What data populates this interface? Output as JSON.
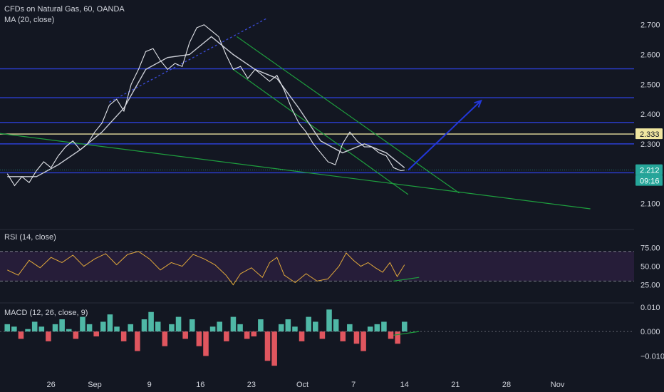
{
  "chart_data": {
    "type": "line",
    "title": "CFDs on Natural Gas, 60, OANDA",
    "indicator_ma": "MA (20, close)",
    "indicator_rsi": "RSI (14, close)",
    "indicator_macd": "MACD (12, 26, close, 9)",
    "x_ticks": [
      "26",
      "Sep",
      "9",
      "16",
      "23",
      "Oct",
      "7",
      "14",
      "21",
      "28",
      "Nov"
    ],
    "price_axis": {
      "ticks": [
        "2.700",
        "2.600",
        "2.500",
        "2.400",
        "2.300",
        "2.200",
        "2.100"
      ],
      "ylim": [
        2.07,
        2.74
      ]
    },
    "rsi_axis": {
      "ticks": [
        "75.00",
        "50.00",
        "25.00"
      ],
      "ylim": [
        15,
        90
      ],
      "band": [
        30,
        70
      ]
    },
    "macd_axis": {
      "ticks": [
        "0.010",
        "0.000",
        "−0.010"
      ],
      "ylim": [
        -0.016,
        0.012
      ]
    },
    "price_tags": [
      {
        "value": "2.333",
        "color": "#f0e6a0",
        "text_color": "#131722"
      },
      {
        "value": "2.212",
        "color": "#26a69a",
        "text_color": "#ffffff"
      },
      {
        "value": "09:16",
        "color": "#26a69a",
        "text_color": "#ffffff"
      }
    ],
    "horizontal_levels": [
      2.552,
      2.455,
      2.372,
      2.3,
      2.203
    ],
    "highlight_level": 2.333,
    "close_price": 2.212,
    "price_series": [
      {
        "t": -12,
        "v": 2.2
      },
      {
        "t": -10,
        "v": 2.16
      },
      {
        "t": -8,
        "v": 2.19
      },
      {
        "t": -6,
        "v": 2.17
      },
      {
        "t": -4,
        "v": 2.21
      },
      {
        "t": -2,
        "v": 2.24
      },
      {
        "t": 0,
        "v": 2.22
      },
      {
        "t": 2,
        "v": 2.26
      },
      {
        "t": 4,
        "v": 2.29
      },
      {
        "t": 6,
        "v": 2.31
      },
      {
        "t": 8,
        "v": 2.28
      },
      {
        "t": 10,
        "v": 2.3
      },
      {
        "t": 12,
        "v": 2.34
      },
      {
        "t": 14,
        "v": 2.37
      },
      {
        "t": 16,
        "v": 2.43
      },
      {
        "t": 18,
        "v": 2.45
      },
      {
        "t": 20,
        "v": 2.41
      },
      {
        "t": 22,
        "v": 2.5
      },
      {
        "t": 24,
        "v": 2.55
      },
      {
        "t": 26,
        "v": 2.61
      },
      {
        "t": 28,
        "v": 2.62
      },
      {
        "t": 30,
        "v": 2.58
      },
      {
        "t": 32,
        "v": 2.55
      },
      {
        "t": 34,
        "v": 2.57
      },
      {
        "t": 36,
        "v": 2.56
      },
      {
        "t": 38,
        "v": 2.64
      },
      {
        "t": 40,
        "v": 2.69
      },
      {
        "t": 42,
        "v": 2.7
      },
      {
        "t": 44,
        "v": 2.68
      },
      {
        "t": 46,
        "v": 2.66
      },
      {
        "t": 48,
        "v": 2.6
      },
      {
        "t": 50,
        "v": 2.55
      },
      {
        "t": 52,
        "v": 2.56
      },
      {
        "t": 54,
        "v": 2.52
      },
      {
        "t": 56,
        "v": 2.55
      },
      {
        "t": 58,
        "v": 2.53
      },
      {
        "t": 60,
        "v": 2.51
      },
      {
        "t": 62,
        "v": 2.53
      },
      {
        "t": 64,
        "v": 2.48
      },
      {
        "t": 66,
        "v": 2.42
      },
      {
        "t": 68,
        "v": 2.37
      },
      {
        "t": 70,
        "v": 2.34
      },
      {
        "t": 72,
        "v": 2.3
      },
      {
        "t": 74,
        "v": 2.27
      },
      {
        "t": 76,
        "v": 2.24
      },
      {
        "t": 78,
        "v": 2.23
      },
      {
        "t": 80,
        "v": 2.3
      },
      {
        "t": 82,
        "v": 2.34
      },
      {
        "t": 84,
        "v": 2.31
      },
      {
        "t": 86,
        "v": 2.29
      },
      {
        "t": 88,
        "v": 2.29
      },
      {
        "t": 90,
        "v": 2.27
      },
      {
        "t": 92,
        "v": 2.26
      },
      {
        "t": 94,
        "v": 2.22
      },
      {
        "t": 96,
        "v": 2.21
      },
      {
        "t": 97,
        "v": 2.212
      }
    ],
    "ma_series": [
      {
        "t": -12,
        "v": 2.19
      },
      {
        "t": -4,
        "v": 2.19
      },
      {
        "t": 2,
        "v": 2.23
      },
      {
        "t": 8,
        "v": 2.28
      },
      {
        "t": 14,
        "v": 2.34
      },
      {
        "t": 20,
        "v": 2.42
      },
      {
        "t": 26,
        "v": 2.55
      },
      {
        "t": 32,
        "v": 2.59
      },
      {
        "t": 38,
        "v": 2.6
      },
      {
        "t": 44,
        "v": 2.66
      },
      {
        "t": 50,
        "v": 2.6
      },
      {
        "t": 56,
        "v": 2.55
      },
      {
        "t": 62,
        "v": 2.52
      },
      {
        "t": 68,
        "v": 2.42
      },
      {
        "t": 74,
        "v": 2.31
      },
      {
        "t": 80,
        "v": 2.27
      },
      {
        "t": 86,
        "v": 2.3
      },
      {
        "t": 92,
        "v": 2.27
      },
      {
        "t": 97,
        "v": 2.22
      }
    ],
    "rsi_series": [
      {
        "t": -12,
        "v": 45
      },
      {
        "t": -9,
        "v": 38
      },
      {
        "t": -6,
        "v": 58
      },
      {
        "t": -3,
        "v": 48
      },
      {
        "t": 0,
        "v": 62
      },
      {
        "t": 3,
        "v": 55
      },
      {
        "t": 6,
        "v": 65
      },
      {
        "t": 9,
        "v": 50
      },
      {
        "t": 12,
        "v": 60
      },
      {
        "t": 15,
        "v": 67
      },
      {
        "t": 18,
        "v": 52
      },
      {
        "t": 21,
        "v": 66
      },
      {
        "t": 24,
        "v": 70
      },
      {
        "t": 27,
        "v": 60
      },
      {
        "t": 30,
        "v": 45
      },
      {
        "t": 33,
        "v": 55
      },
      {
        "t": 36,
        "v": 50
      },
      {
        "t": 39,
        "v": 66
      },
      {
        "t": 42,
        "v": 60
      },
      {
        "t": 45,
        "v": 52
      },
      {
        "t": 48,
        "v": 38
      },
      {
        "t": 50,
        "v": 25
      },
      {
        "t": 52,
        "v": 40
      },
      {
        "t": 55,
        "v": 48
      },
      {
        "t": 58,
        "v": 35
      },
      {
        "t": 60,
        "v": 55
      },
      {
        "t": 62,
        "v": 62
      },
      {
        "t": 64,
        "v": 38
      },
      {
        "t": 67,
        "v": 28
      },
      {
        "t": 70,
        "v": 40
      },
      {
        "t": 73,
        "v": 30
      },
      {
        "t": 76,
        "v": 33
      },
      {
        "t": 79,
        "v": 50
      },
      {
        "t": 81,
        "v": 68
      },
      {
        "t": 83,
        "v": 58
      },
      {
        "t": 85,
        "v": 50
      },
      {
        "t": 87,
        "v": 55
      },
      {
        "t": 89,
        "v": 48
      },
      {
        "t": 91,
        "v": 42
      },
      {
        "t": 93,
        "v": 55
      },
      {
        "t": 95,
        "v": 36
      },
      {
        "t": 97,
        "v": 52
      }
    ],
    "macd_hist": [
      0.003,
      0.002,
      -0.003,
      0.001,
      0.004,
      0.002,
      -0.004,
      0.003,
      0.005,
      0.001,
      -0.003,
      0.006,
      0.003,
      -0.002,
      0.004,
      0.007,
      0.002,
      -0.004,
      0.003,
      -0.008,
      0.005,
      0.008,
      0.004,
      -0.006,
      0.003,
      0.006,
      -0.003,
      0.005,
      -0.006,
      -0.01,
      0.002,
      0.004,
      -0.004,
      0.006,
      0.003,
      -0.003,
      -0.002,
      0.005,
      -0.012,
      -0.014,
      0.003,
      0.005,
      0.002,
      -0.004,
      0.006,
      0.004,
      -0.003,
      0.009,
      0.005,
      -0.004,
      0.003,
      -0.005,
      -0.008,
      0.002,
      0.003,
      0.004,
      -0.003,
      -0.005,
      0.004
    ],
    "annotations": {
      "channel_upper": [
        {
          "t": 51,
          "v": 2.66
        },
        {
          "t": 112,
          "v": 2.135
        }
      ],
      "channel_lower": [
        {
          "t": 50,
          "v": 2.55
        },
        {
          "t": 98,
          "v": 2.13
        }
      ],
      "support_line": [
        {
          "t": -14,
          "v": 2.335
        },
        {
          "t": 148,
          "v": 2.082
        }
      ],
      "dotted_trend": [
        {
          "t": 16,
          "v": 2.44
        },
        {
          "t": 59,
          "v": 2.72
        }
      ],
      "projection_arrow": [
        {
          "t": 98,
          "v": 2.212
        },
        {
          "t": 118,
          "v": 2.445
        }
      ],
      "rsi_divergence": [
        {
          "t": 94,
          "v": 30
        },
        {
          "t": 101,
          "v": 35
        }
      ],
      "macd_divergence": [
        {
          "t": 94,
          "v": -0.0015
        },
        {
          "t": 101,
          "v": 0.0
        }
      ]
    },
    "x_range": [
      -14,
      160
    ],
    "x_tick_positions": [
      0,
      12,
      27,
      41,
      55,
      69,
      83,
      97,
      111,
      125,
      139
    ]
  }
}
